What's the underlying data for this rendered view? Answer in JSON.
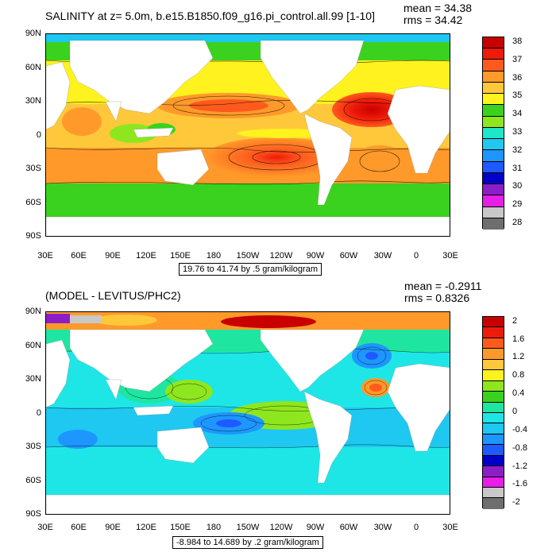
{
  "panel1": {
    "title": "SALINITY at z=   5.0m, b.e15.B1850.f09_g16.pi_control.all.99 [1-10]",
    "mean": "mean = 34.38",
    "rms": "rms = 34.42",
    "info": "19.76 to 41.74 by .5 gram/kilogram",
    "yticks": [
      "90N",
      "60N",
      "30N",
      "0",
      "30S",
      "60S",
      "90S"
    ],
    "xticks": [
      "30E",
      "60E",
      "90E",
      "120E",
      "150E",
      "180",
      "150W",
      "120W",
      "90W",
      "60W",
      "30W",
      "0",
      "30E"
    ],
    "colorbar": {
      "labels": [
        "38",
        "37",
        "36",
        "35",
        "34",
        "33",
        "32",
        "31",
        "30",
        "29",
        "28"
      ],
      "colors": [
        "#c80000",
        "#ee1a0a",
        "#ff5a1e",
        "#ff9a2a",
        "#ffc83a",
        "#fff21e",
        "#3ad21e",
        "#8ee61e",
        "#1ee6c8",
        "#1ec8f0",
        "#1e96ff",
        "#1e5aff",
        "#0000c8",
        "#8c1ec8",
        "#e61ee6",
        "#c8c8c8",
        "#6e6e6e"
      ]
    }
  },
  "panel2": {
    "title": "(MODEL - LEVITUS/PHC2)",
    "mean": "mean = -0.2911",
    "rms": "rms = 0.8326",
    "info": "-8.984 to 14.689 by .2 gram/kilogram",
    "yticks": [
      "90N",
      "60N",
      "30N",
      "0",
      "30S",
      "60S",
      "90S"
    ],
    "xticks": [
      "30E",
      "60E",
      "90E",
      "120E",
      "150E",
      "180",
      "150W",
      "120W",
      "90W",
      "60W",
      "30W",
      "0",
      "30E"
    ],
    "colorbar": {
      "labels": [
        "2",
        "1.6",
        "1.2",
        "0.8",
        "0.4",
        "0",
        "-0.4",
        "-0.8",
        "-1.2",
        "-1.6",
        "-2"
      ],
      "colors": [
        "#c80000",
        "#ee1a0a",
        "#ff5a1e",
        "#ff9a2a",
        "#ffc83a",
        "#fff21e",
        "#8ee61e",
        "#3ad21e",
        "#1ee6a0",
        "#1ee6e6",
        "#1ec8f0",
        "#1e96ff",
        "#1e5aff",
        "#0000c8",
        "#8c1ec8",
        "#e61ee6",
        "#c8c8c8",
        "#6e6e6e"
      ]
    }
  }
}
